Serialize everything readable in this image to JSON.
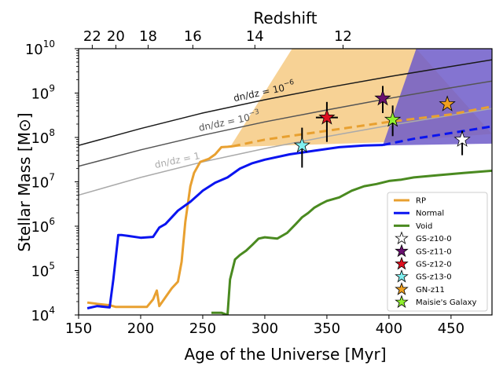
{
  "chart_data": {
    "type": "line",
    "xlabel": "Age of the Universe [Myr]",
    "ylabel": "Stellar Mass [M⊙]",
    "top_xlabel": "Redshift",
    "xlim": [
      150,
      483
    ],
    "ylim_log10": [
      4,
      10
    ],
    "log_y": true,
    "grid": false,
    "legend_position": "lower right",
    "x_ticks": [
      150,
      200,
      250,
      300,
      350,
      400,
      450
    ],
    "y_ticks": [
      {
        "exp": 4,
        "label": "10",
        "sup": "4"
      },
      {
        "exp": 5,
        "label": "10",
        "sup": "5"
      },
      {
        "exp": 6,
        "label": "10",
        "sup": "6"
      },
      {
        "exp": 7,
        "label": "10",
        "sup": "7"
      },
      {
        "exp": 8,
        "label": "10",
        "sup": "8"
      },
      {
        "exp": 9,
        "label": "10",
        "sup": "9"
      },
      {
        "exp": 10,
        "label": "10",
        "sup": "10"
      }
    ],
    "top_ticks": [
      {
        "label": "22",
        "x": 161
      },
      {
        "label": "20",
        "x": 180
      },
      {
        "label": "18",
        "x": 206
      },
      {
        "label": "16",
        "x": 242
      },
      {
        "label": "14",
        "x": 292
      },
      {
        "label": "12",
        "x": 363
      }
    ],
    "shaded_regions": [
      {
        "name": "RP",
        "color": "#f5c77a",
        "lower": [
          [
            272,
            7.78
          ],
          [
            395,
            7.89
          ],
          [
            483,
            8.08
          ]
        ],
        "upper": [
          [
            272,
            7.78
          ],
          [
            322,
            10.0
          ],
          [
            422,
            10.0
          ]
        ]
      },
      {
        "name": "Normal",
        "color": "#6f5cc9",
        "lower": [
          [
            395,
            7.82
          ],
          [
            483,
            7.86
          ]
        ],
        "upper": [
          [
            395,
            7.82
          ],
          [
            422,
            10.0
          ],
          [
            483,
            10.0
          ]
        ]
      }
    ],
    "density_curves": [
      {
        "label": "dn/dz = 10",
        "sup": "−6",
        "color": "#1a1a1a",
        "points": [
          [
            150,
            7.82
          ],
          [
            200,
            8.2
          ],
          [
            250,
            8.55
          ],
          [
            300,
            8.85
          ],
          [
            350,
            9.12
          ],
          [
            400,
            9.37
          ],
          [
            450,
            9.6
          ],
          [
            483,
            9.75
          ]
        ]
      },
      {
        "label": "dn/dz = 10",
        "sup": "−3",
        "color": "#555555",
        "points": [
          [
            150,
            7.35
          ],
          [
            200,
            7.72
          ],
          [
            250,
            8.05
          ],
          [
            300,
            8.35
          ],
          [
            350,
            8.62
          ],
          [
            400,
            8.88
          ],
          [
            450,
            9.12
          ],
          [
            483,
            9.27
          ]
        ]
      },
      {
        "label": "dn/dz = 1",
        "sup": "",
        "color": "#aaaaaa",
        "points": [
          [
            150,
            6.7
          ],
          [
            200,
            7.1
          ],
          [
            250,
            7.45
          ],
          [
            300,
            7.75
          ],
          [
            350,
            8.02
          ],
          [
            400,
            8.27
          ],
          [
            450,
            8.5
          ],
          [
            483,
            8.65
          ]
        ]
      }
    ],
    "series": [
      {
        "name": "RP",
        "color": "#e8a030",
        "points": [
          [
            157,
            4.28
          ],
          [
            165,
            4.25
          ],
          [
            175,
            4.22
          ],
          [
            180,
            4.18
          ],
          [
            190,
            4.18
          ],
          [
            205,
            4.18
          ],
          [
            210,
            4.35
          ],
          [
            213,
            4.55
          ],
          [
            215,
            4.2
          ],
          [
            220,
            4.4
          ],
          [
            225,
            4.6
          ],
          [
            230,
            4.75
          ],
          [
            233,
            5.2
          ],
          [
            236,
            6.1
          ],
          [
            238,
            6.5
          ],
          [
            240,
            6.9
          ],
          [
            243,
            7.2
          ],
          [
            248,
            7.45
          ],
          [
            255,
            7.52
          ],
          [
            260,
            7.62
          ],
          [
            265,
            7.78
          ],
          [
            270,
            7.79
          ],
          [
            274,
            7.8
          ]
        ],
        "projection": [
          [
            274,
            7.8
          ],
          [
            300,
            7.95
          ],
          [
            350,
            8.15
          ],
          [
            400,
            8.35
          ],
          [
            450,
            8.52
          ],
          [
            483,
            8.7
          ]
        ]
      },
      {
        "name": "Normal",
        "color": "#0a14f0",
        "points": [
          [
            157,
            4.15
          ],
          [
            165,
            4.2
          ],
          [
            175,
            4.17
          ],
          [
            178,
            4.8
          ],
          [
            182,
            5.8
          ],
          [
            185,
            5.8
          ],
          [
            190,
            5.78
          ],
          [
            200,
            5.74
          ],
          [
            210,
            5.76
          ],
          [
            215,
            5.97
          ],
          [
            220,
            6.05
          ],
          [
            225,
            6.2
          ],
          [
            230,
            6.35
          ],
          [
            240,
            6.55
          ],
          [
            250,
            6.8
          ],
          [
            260,
            6.98
          ],
          [
            270,
            7.1
          ],
          [
            280,
            7.3
          ],
          [
            290,
            7.42
          ],
          [
            300,
            7.5
          ],
          [
            320,
            7.62
          ],
          [
            340,
            7.7
          ],
          [
            360,
            7.78
          ],
          [
            380,
            7.82
          ],
          [
            395,
            7.83
          ]
        ],
        "projection": [
          [
            395,
            7.83
          ],
          [
            420,
            7.97
          ],
          [
            450,
            8.1
          ],
          [
            483,
            8.25
          ]
        ]
      },
      {
        "name": "Void",
        "color": "#4a8a20",
        "points": [
          [
            257,
            4.05
          ],
          [
            265,
            4.05
          ],
          [
            270,
            4.0
          ],
          [
            272,
            4.8
          ],
          [
            276,
            5.25
          ],
          [
            280,
            5.35
          ],
          [
            285,
            5.45
          ],
          [
            290,
            5.58
          ],
          [
            295,
            5.72
          ],
          [
            300,
            5.75
          ],
          [
            310,
            5.72
          ],
          [
            318,
            5.85
          ],
          [
            325,
            6.05
          ],
          [
            330,
            6.2
          ],
          [
            335,
            6.3
          ],
          [
            340,
            6.42
          ],
          [
            345,
            6.5
          ],
          [
            350,
            6.57
          ],
          [
            360,
            6.65
          ],
          [
            370,
            6.8
          ],
          [
            380,
            6.9
          ],
          [
            390,
            6.95
          ],
          [
            400,
            7.02
          ],
          [
            410,
            7.05
          ],
          [
            420,
            7.1
          ],
          [
            440,
            7.15
          ],
          [
            460,
            7.2
          ],
          [
            483,
            7.25
          ]
        ]
      }
    ],
    "galaxies": [
      {
        "name": "GS-z10-0",
        "color": "#ffffff",
        "x": 459,
        "y": 7.95,
        "yerr": [
          0.35,
          0.2
        ]
      },
      {
        "name": "GS-z11-0",
        "color": "#6a1070",
        "x": 395,
        "y": 8.88,
        "yerr": [
          0.33,
          0.28
        ]
      },
      {
        "name": "GS-z12-0",
        "color": "#e01020",
        "x": 350,
        "y": 8.45,
        "yerr": [
          0.55,
          0.35
        ]
      },
      {
        "name": "GS-z13-0",
        "color": "#80f0f0",
        "x": 330,
        "y": 7.82,
        "yerr": [
          0.5,
          0.4
        ]
      },
      {
        "name": "GN-z11",
        "color": "#f0a020",
        "x": 447,
        "y": 8.75,
        "yerr": [
          0.05,
          0.05
        ]
      },
      {
        "name": "Maisie's Galaxy",
        "color": "#90f030",
        "x": 403,
        "y": 8.4,
        "yerr": [
          0.37,
          0.32
        ]
      }
    ],
    "legend": [
      "RP",
      "Normal",
      "Void",
      "GS-z10-0",
      "GS-z11-0",
      "GS-z12-0",
      "GS-z13-0",
      "GN-z11",
      "Maisie's Galaxy"
    ]
  }
}
